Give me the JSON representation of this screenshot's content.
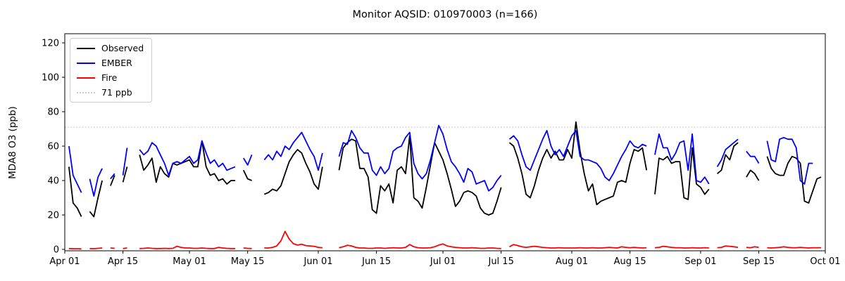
{
  "title": "Monitor AQSID: 010970003 (n=166)",
  "legend": {
    "items": [
      {
        "label": "Observed",
        "color": "#000000",
        "style": "solid"
      },
      {
        "label": "EMBER",
        "color": "#0000ff",
        "style": "solid"
      },
      {
        "label": "Fire",
        "color": "#ff0000",
        "style": "solid"
      },
      {
        "label": "71 ppb",
        "color": "#c9c9c9",
        "style": "dotted"
      }
    ]
  },
  "chart_data": {
    "type": "line",
    "title": "Monitor AQSID: 010970003 (n=166)",
    "xlabel": "",
    "ylabel": "MDA8 O3 (ppb)",
    "ylim": [
      -1,
      125
    ],
    "yticks": [
      0,
      20,
      40,
      60,
      80,
      100,
      120
    ],
    "grid": false,
    "legend_position": "upper left",
    "threshold": {
      "value": 71,
      "label": "71 ppb",
      "color": "#c9c9c9",
      "style": "dotted"
    },
    "x_start_date": "Apr 01",
    "x_end_date": "Oct 01",
    "n_days": 183,
    "xticks": [
      {
        "day": 0,
        "label": "Apr 01"
      },
      {
        "day": 14,
        "label": "Apr 15"
      },
      {
        "day": 30,
        "label": "May 01"
      },
      {
        "day": 44,
        "label": "May 15"
      },
      {
        "day": 61,
        "label": "Jun 01"
      },
      {
        "day": 75,
        "label": "Jun 15"
      },
      {
        "day": 91,
        "label": "Jul 01"
      },
      {
        "day": 105,
        "label": "Jul 15"
      },
      {
        "day": 122,
        "label": "Aug 01"
      },
      {
        "day": 136,
        "label": "Aug 15"
      },
      {
        "day": 153,
        "label": "Sep 01"
      },
      {
        "day": 167,
        "label": "Sep 15"
      },
      {
        "day": 183,
        "label": "Oct 01"
      }
    ],
    "series": [
      {
        "name": "Observed",
        "color": "#000000",
        "values": [
          null,
          48,
          27,
          24,
          19,
          null,
          22,
          19,
          30,
          40,
          null,
          37,
          43,
          null,
          39,
          48,
          null,
          null,
          55,
          46,
          49,
          53,
          39,
          48,
          44,
          42,
          50,
          49,
          50,
          51,
          52,
          48,
          48,
          63,
          48,
          43,
          44,
          40,
          41,
          38,
          40,
          40,
          null,
          46,
          41,
          40,
          null,
          null,
          32,
          33,
          35,
          34,
          37,
          44,
          51,
          55,
          58,
          56,
          50,
          45,
          38,
          35,
          48,
          null,
          null,
          null,
          46,
          59,
          62,
          64,
          63,
          47,
          47,
          42,
          23,
          21,
          37,
          34,
          38,
          27,
          46,
          48,
          44,
          66,
          30,
          28,
          24,
          36,
          49,
          62,
          57,
          52,
          44,
          35,
          25,
          28,
          33,
          34,
          33,
          31,
          24,
          21,
          20,
          21,
          28,
          36,
          null,
          62,
          60,
          53,
          44,
          32,
          30,
          37,
          46,
          53,
          58,
          53,
          57,
          52,
          52,
          58,
          53,
          74,
          57,
          44,
          34,
          38,
          26,
          28,
          29,
          30,
          31,
          39,
          40,
          39,
          50,
          58,
          57,
          59,
          46,
          null,
          32,
          53,
          52,
          54,
          50,
          51,
          51,
          30,
          29,
          59,
          38,
          36,
          32,
          35,
          null,
          44,
          46,
          55,
          52,
          60,
          62,
          null,
          42,
          46,
          44,
          40,
          null,
          54,
          47,
          44,
          43,
          43,
          50,
          54,
          53,
          50,
          28,
          27,
          34,
          41,
          42
        ]
      },
      {
        "name": "EMBER",
        "color": "#0000ff",
        "values": [
          null,
          60,
          43,
          38,
          33,
          null,
          41,
          31,
          42,
          47,
          null,
          41,
          44,
          null,
          43,
          59,
          null,
          null,
          58,
          55,
          57,
          62,
          60,
          55,
          50,
          43,
          50,
          51,
          50,
          52,
          54,
          50,
          52,
          63,
          56,
          50,
          52,
          48,
          50,
          46,
          47,
          48,
          null,
          53,
          49,
          55,
          null,
          null,
          52,
          55,
          52,
          57,
          54,
          60,
          58,
          62,
          65,
          68,
          63,
          58,
          54,
          46,
          56,
          null,
          null,
          null,
          54,
          62,
          61,
          69,
          65,
          59,
          56,
          56,
          46,
          43,
          48,
          44,
          47,
          57,
          59,
          60,
          65,
          68,
          50,
          44,
          41,
          44,
          52,
          62,
          72,
          67,
          58,
          51,
          48,
          44,
          39,
          47,
          45,
          38,
          39,
          40,
          34,
          36,
          40,
          43,
          null,
          64,
          66,
          63,
          55,
          48,
          46,
          52,
          58,
          64,
          69,
          60,
          55,
          58,
          54,
          60,
          66,
          69,
          54,
          52,
          52,
          51,
          50,
          47,
          42,
          40,
          44,
          49,
          54,
          58,
          63,
          60,
          59,
          61,
          60,
          null,
          55,
          67,
          59,
          59,
          52,
          56,
          62,
          63,
          46,
          67,
          40,
          39,
          42,
          38,
          null,
          48,
          52,
          58,
          60,
          62,
          64,
          null,
          57,
          54,
          54,
          50,
          null,
          63,
          52,
          51,
          64,
          65,
          64,
          64,
          59,
          40,
          38,
          50,
          50,
          null,
          null
        ]
      },
      {
        "name": "Fire",
        "color": "#ff0000",
        "values": [
          null,
          0.5,
          0.4,
          0.4,
          0.3,
          null,
          0.5,
          0.4,
          0.6,
          0.8,
          null,
          0.8,
          0.6,
          null,
          0.5,
          0.8,
          null,
          null,
          0.5,
          0.6,
          0.8,
          0.6,
          0.5,
          0.5,
          0.6,
          0.5,
          0.6,
          1.8,
          1.2,
          0.8,
          0.8,
          0.6,
          0.6,
          0.8,
          0.6,
          0.5,
          0.5,
          1.2,
          0.8,
          0.6,
          0.5,
          0.5,
          null,
          0.8,
          0.6,
          0.5,
          null,
          null,
          0.8,
          0.8,
          1.2,
          2.0,
          5.0,
          10.5,
          6.0,
          3.3,
          2.5,
          3.0,
          2.2,
          2.0,
          1.8,
          1.2,
          1.0,
          null,
          null,
          null,
          1.0,
          1.5,
          2.4,
          2.0,
          1.2,
          0.8,
          0.8,
          0.6,
          0.6,
          0.8,
          0.8,
          0.6,
          0.8,
          1.0,
          0.8,
          0.8,
          1.2,
          2.8,
          1.5,
          1.0,
          0.8,
          0.8,
          1.0,
          1.5,
          2.5,
          3.2,
          2.0,
          1.5,
          1.2,
          1.0,
          0.8,
          0.8,
          1.0,
          0.8,
          0.6,
          0.6,
          0.8,
          0.8,
          0.6,
          0.5,
          null,
          1.5,
          2.8,
          2.2,
          1.5,
          1.2,
          1.5,
          1.8,
          1.5,
          1.2,
          1.0,
          0.8,
          0.8,
          1.0,
          0.8,
          0.8,
          0.8,
          0.8,
          1.0,
          0.8,
          0.8,
          1.0,
          0.8,
          0.8,
          1.0,
          1.2,
          1.0,
          0.8,
          1.5,
          1.2,
          1.0,
          1.2,
          1.0,
          0.8,
          1.0,
          null,
          1.0,
          1.2,
          1.8,
          1.5,
          1.2,
          1.0,
          1.0,
          0.8,
          0.8,
          1.0,
          0.8,
          0.8,
          1.0,
          0.8,
          null,
          1.0,
          1.2,
          2.0,
          1.8,
          1.5,
          1.2,
          null,
          1.2,
          1.0,
          1.5,
          1.2,
          null,
          1.0,
          0.8,
          1.0,
          1.2,
          1.5,
          1.2,
          1.0,
          1.0,
          1.2,
          1.0,
          0.8,
          1.0,
          1.0,
          1.0
        ]
      }
    ]
  }
}
